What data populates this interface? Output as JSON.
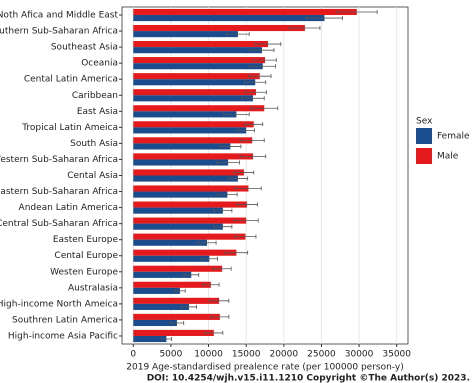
{
  "chart_data": {
    "type": "barh",
    "categories": [
      "Noth Afica and Middle East",
      "Southern Sub-Saharan Africa",
      "Southeast Asia",
      "Oceania",
      "Cental Latin America",
      "Caribbean",
      "East Asia",
      "Tropical Latin Ameica",
      "South Asia",
      "Western Sub-Saharan Africa",
      "Cental Asia",
      "Eastern Sub-Saharan Africa",
      "Andean Latin America",
      "Central Sub-Saharan Africa",
      "Easten Europe",
      "Cental Europe",
      "Westen Europe",
      "Australasia",
      "High-income North Ameica",
      "Southren Latin America",
      "High-income Asia Pacific"
    ],
    "series": [
      {
        "name": "Female",
        "color": "#1b4d8e",
        "values": [
          25400,
          13900,
          17100,
          17200,
          16200,
          15900,
          13700,
          15000,
          12900,
          12600,
          13900,
          12500,
          11900,
          11900,
          9800,
          10100,
          7700,
          6200,
          7400,
          5800,
          4400
        ],
        "errors": [
          2400,
          1500,
          1600,
          1700,
          1400,
          1500,
          1700,
          1100,
          1400,
          1500,
          1300,
          1300,
          1200,
          1200,
          1200,
          1100,
          1000,
          700,
          1000,
          900,
          700
        ]
      },
      {
        "name": "Male",
        "color": "#e41a1c",
        "values": [
          29700,
          22800,
          17900,
          17500,
          16800,
          16300,
          17400,
          16000,
          15800,
          15900,
          14700,
          15300,
          15100,
          15000,
          14900,
          13700,
          11800,
          10300,
          11400,
          11500,
          10700
        ],
        "errors": [
          2700,
          2000,
          1700,
          1500,
          1500,
          1400,
          1800,
          1200,
          1600,
          1700,
          1300,
          1700,
          1400,
          1600,
          1400,
          1500,
          1200,
          1100,
          1300,
          1200,
          1200
        ]
      }
    ],
    "xlabel": "2019 Age-standardised prealence rate (per 100000 person-y)",
    "legend_title": "Sex",
    "xlim": [
      -1500,
      36500
    ],
    "xticks": [
      0,
      5000,
      10000,
      15000,
      20000,
      25000,
      30000,
      35000
    ],
    "grid": true,
    "footer": "DOI: 10.4254/wjh.v15.i11.1210 Copyright ©The Author(s) 2023."
  }
}
